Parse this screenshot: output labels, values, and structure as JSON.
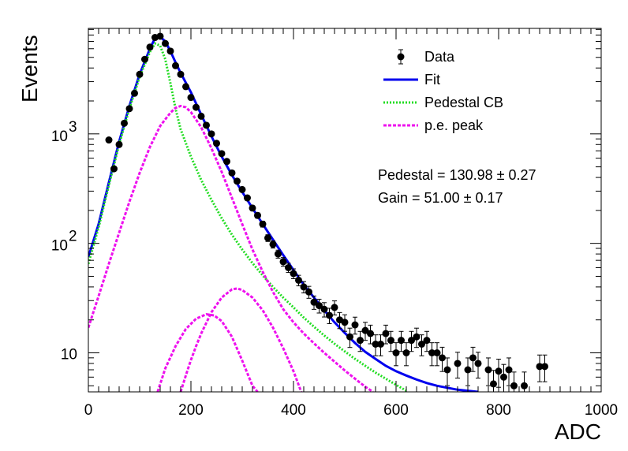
{
  "chart_data": {
    "type": "scatter",
    "title": "",
    "xlabel": "ADC",
    "ylabel": "Events",
    "xlim": [
      0,
      1000
    ],
    "ylim": [
      4.4,
      9200
    ],
    "yscale": "log",
    "x_ticks": [
      {
        "value": 0,
        "label": "0"
      },
      {
        "value": 200,
        "label": "200"
      },
      {
        "value": 400,
        "label": "400"
      },
      {
        "value": 600,
        "label": "600"
      },
      {
        "value": 800,
        "label": "800"
      },
      {
        "value": 1000,
        "label": "1000"
      }
    ],
    "y_ticks": [
      {
        "value": 10,
        "label": "10"
      },
      {
        "value": 100,
        "label": "10",
        "exp": "2"
      },
      {
        "value": 1000,
        "label": "10",
        "exp": "3"
      }
    ],
    "grid": false,
    "legend": {
      "position": "top-right",
      "entries": [
        {
          "label": "Data",
          "style": "marker",
          "color": "#000000"
        },
        {
          "label": "Fit",
          "style": "solid",
          "color": "#0000ee"
        },
        {
          "label": "Pedestal CB",
          "style": "dotted",
          "color": "#22dd22"
        },
        {
          "label": "p.e. peak",
          "style": "dashed",
          "color": "#ee11ee"
        }
      ]
    },
    "annotations": {
      "pedestal": "Pedestal = 130.98 ± 0.27",
      "gain": "Gain = 51.00 ± 0.17"
    },
    "series": [
      {
        "name": "Data",
        "style": "points-with-errors",
        "color": "#000000",
        "points": [
          [
            40,
            880
          ],
          [
            50,
            480
          ],
          [
            60,
            800
          ],
          [
            70,
            1250
          ],
          [
            80,
            1700
          ],
          [
            90,
            2350
          ],
          [
            100,
            3500
          ],
          [
            110,
            4800
          ],
          [
            120,
            6200
          ],
          [
            130,
            7600
          ],
          [
            140,
            7800
          ],
          [
            150,
            6700
          ],
          [
            160,
            5700
          ],
          [
            170,
            4200
          ],
          [
            180,
            3500
          ],
          [
            190,
            2700
          ],
          [
            200,
            2150
          ],
          [
            210,
            1750
          ],
          [
            220,
            1450
          ],
          [
            230,
            1200
          ],
          [
            240,
            1000
          ],
          [
            250,
            820
          ],
          [
            260,
            660
          ],
          [
            270,
            560
          ],
          [
            280,
            440
          ],
          [
            290,
            370
          ],
          [
            300,
            310
          ],
          [
            310,
            260
          ],
          [
            320,
            210
          ],
          [
            330,
            180
          ],
          [
            340,
            150
          ],
          [
            350,
            112
          ],
          [
            360,
            98
          ],
          [
            370,
            80
          ],
          [
            380,
            68
          ],
          [
            390,
            60
          ],
          [
            400,
            53
          ],
          [
            410,
            46
          ],
          [
            420,
            40
          ],
          [
            430,
            36
          ],
          [
            440,
            29
          ],
          [
            450,
            27
          ],
          [
            460,
            25
          ],
          [
            470,
            22
          ],
          [
            480,
            26
          ],
          [
            490,
            20
          ],
          [
            500,
            19
          ],
          [
            510,
            14
          ],
          [
            520,
            18
          ],
          [
            530,
            13
          ],
          [
            540,
            16
          ],
          [
            550,
            15
          ],
          [
            560,
            12
          ],
          [
            570,
            12
          ],
          [
            580,
            15
          ],
          [
            590,
            13
          ],
          [
            600,
            10
          ],
          [
            610,
            13
          ],
          [
            620,
            10
          ],
          [
            630,
            13
          ],
          [
            640,
            14
          ],
          [
            650,
            12
          ],
          [
            660,
            13
          ],
          [
            670,
            10
          ],
          [
            680,
            10
          ],
          [
            690,
            9
          ],
          [
            700,
            7
          ],
          [
            720,
            8
          ],
          [
            740,
            7
          ],
          [
            750,
            9
          ],
          [
            760,
            8
          ],
          [
            780,
            7
          ],
          [
            790,
            5.2
          ],
          [
            800,
            6.8
          ],
          [
            810,
            6
          ],
          [
            820,
            7
          ],
          [
            830,
            5
          ],
          [
            850,
            5
          ],
          [
            880,
            7.5
          ],
          [
            890,
            7.5
          ]
        ]
      },
      {
        "name": "Fit",
        "style": "solid",
        "color": "#0000ee",
        "points": [
          [
            0,
            75
          ],
          [
            20,
            150
          ],
          [
            40,
            360
          ],
          [
            60,
            850
          ],
          [
            80,
            1800
          ],
          [
            100,
            3500
          ],
          [
            120,
            6000
          ],
          [
            130,
            7500
          ],
          [
            140,
            7700
          ],
          [
            150,
            7000
          ],
          [
            160,
            5700
          ],
          [
            170,
            4500
          ],
          [
            180,
            3600
          ],
          [
            200,
            2400
          ],
          [
            220,
            1500
          ],
          [
            240,
            950
          ],
          [
            260,
            620
          ],
          [
            280,
            420
          ],
          [
            300,
            295
          ],
          [
            320,
            210
          ],
          [
            340,
            150
          ],
          [
            360,
            108
          ],
          [
            380,
            78
          ],
          [
            400,
            57
          ],
          [
            420,
            42
          ],
          [
            440,
            32
          ],
          [
            460,
            24.5
          ],
          [
            480,
            19
          ],
          [
            500,
            15.2
          ],
          [
            520,
            12.3
          ],
          [
            540,
            10.2
          ],
          [
            560,
            8.8
          ],
          [
            580,
            7.6
          ],
          [
            600,
            6.8
          ],
          [
            620,
            6.2
          ],
          [
            640,
            5.7
          ],
          [
            660,
            5.3
          ],
          [
            680,
            5.0
          ],
          [
            700,
            4.8
          ],
          [
            720,
            4.6
          ],
          [
            740,
            4.5
          ],
          [
            760,
            4.4
          ]
        ]
      },
      {
        "name": "Pedestal CB",
        "style": "dotted",
        "color": "#22dd22",
        "points": [
          [
            0,
            65
          ],
          [
            20,
            140
          ],
          [
            40,
            340
          ],
          [
            60,
            800
          ],
          [
            80,
            1700
          ],
          [
            100,
            3300
          ],
          [
            120,
            5600
          ],
          [
            130,
            6700
          ],
          [
            140,
            6400
          ],
          [
            150,
            4800
          ],
          [
            160,
            2900
          ],
          [
            170,
            1700
          ],
          [
            180,
            1100
          ],
          [
            200,
            620
          ],
          [
            220,
            380
          ],
          [
            240,
            250
          ],
          [
            260,
            170
          ],
          [
            280,
            120
          ],
          [
            300,
            88
          ],
          [
            320,
            66
          ],
          [
            340,
            51
          ],
          [
            360,
            40
          ],
          [
            380,
            32
          ],
          [
            400,
            26
          ],
          [
            420,
            21
          ],
          [
            440,
            17.3
          ],
          [
            460,
            14.4
          ],
          [
            480,
            12.1
          ],
          [
            500,
            10.3
          ],
          [
            520,
            8.8
          ],
          [
            540,
            7.6
          ],
          [
            560,
            6.6
          ],
          [
            580,
            5.8
          ],
          [
            600,
            5.1
          ],
          [
            620,
            4.5
          ]
        ]
      },
      {
        "name": "p.e. peak",
        "style": "dashed",
        "color": "#ee11ee",
        "points": [
          [
            0,
            17
          ],
          [
            20,
            33
          ],
          [
            40,
            65
          ],
          [
            60,
            125
          ],
          [
            80,
            240
          ],
          [
            100,
            440
          ],
          [
            120,
            760
          ],
          [
            140,
            1180
          ],
          [
            160,
            1560
          ],
          [
            170,
            1730
          ],
          [
            180,
            1800
          ],
          [
            190,
            1750
          ],
          [
            200,
            1580
          ],
          [
            220,
            1150
          ],
          [
            240,
            740
          ],
          [
            260,
            450
          ],
          [
            280,
            260
          ],
          [
            300,
            150
          ],
          [
            320,
            88
          ],
          [
            340,
            55
          ],
          [
            360,
            36
          ],
          [
            380,
            25
          ],
          [
            400,
            19
          ],
          [
            420,
            15
          ],
          [
            440,
            12.2
          ],
          [
            460,
            10
          ],
          [
            480,
            8.3
          ],
          [
            500,
            6.9
          ],
          [
            520,
            5.8
          ],
          [
            540,
            4.9
          ],
          [
            555,
            4.4
          ]
        ]
      },
      {
        "name": "",
        "style": "dashed",
        "color": "#ee11ee",
        "points": [
          [
            180,
            4.4
          ],
          [
            190,
            6.2
          ],
          [
            200,
            8.6
          ],
          [
            210,
            11.5
          ],
          [
            220,
            15
          ],
          [
            240,
            23.5
          ],
          [
            260,
            32
          ],
          [
            280,
            38
          ],
          [
            290,
            38.7
          ],
          [
            300,
            37.5
          ],
          [
            320,
            32
          ],
          [
            340,
            24.5
          ],
          [
            360,
            17
          ],
          [
            380,
            11
          ],
          [
            400,
            6.8
          ],
          [
            415,
            4.4
          ]
        ]
      },
      {
        "name": "",
        "style": "dashed",
        "color": "#ee11ee",
        "points": [
          [
            135,
            4.4
          ],
          [
            150,
            7.2
          ],
          [
            170,
            11.5
          ],
          [
            190,
            16.5
          ],
          [
            210,
            20.5
          ],
          [
            230,
            22.5
          ],
          [
            245,
            22
          ],
          [
            260,
            19.5
          ],
          [
            280,
            14
          ],
          [
            300,
            8.5
          ],
          [
            320,
            5
          ],
          [
            330,
            4.4
          ]
        ]
      }
    ]
  }
}
